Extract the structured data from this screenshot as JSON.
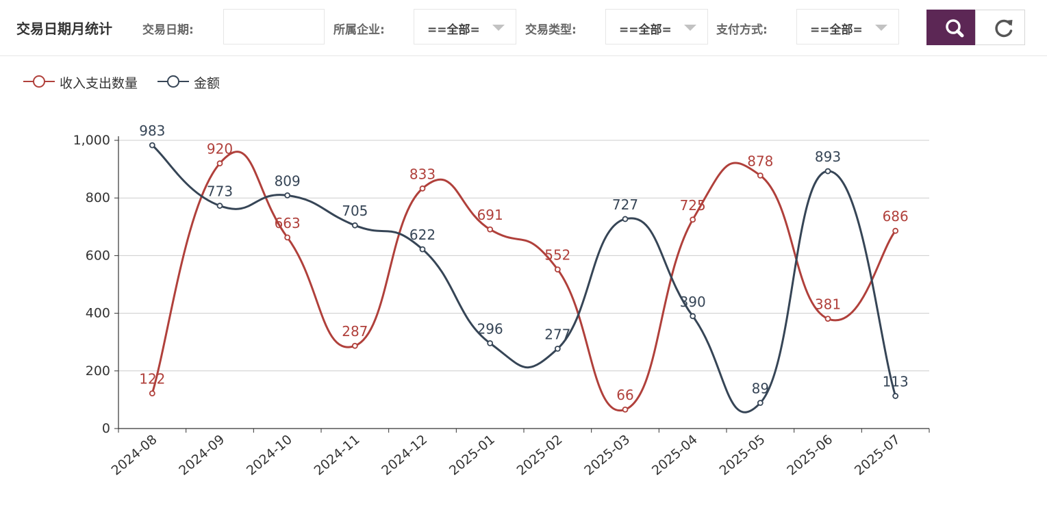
{
  "header": {
    "title": "交易日期月统计",
    "filters": {
      "date_label": "交易日期:",
      "date_value": "",
      "company_label": "所属企业:",
      "company_value": "==全部=",
      "type_label": "交易类型:",
      "type_value": "==全部=",
      "payment_label": "支付方式:",
      "payment_value": "==全部="
    },
    "search_icon": "search-icon",
    "reset_icon": "refresh-icon",
    "accent_color": "#5c2755"
  },
  "legend": {
    "placement": "top-left",
    "items": [
      "收入支出数量",
      "金额"
    ]
  },
  "chart_data": {
    "type": "line",
    "smooth": true,
    "categories": [
      "2024-08",
      "2024-09",
      "2024-10",
      "2024-11",
      "2024-12",
      "2025-01",
      "2025-02",
      "2025-03",
      "2025-04",
      "2025-05",
      "2025-06",
      "2025-07"
    ],
    "series": [
      {
        "name": "收入支出数量",
        "color": "#b0403b",
        "values": [
          122,
          920,
          663,
          287,
          833,
          691,
          552,
          66,
          725,
          878,
          381,
          686
        ]
      },
      {
        "name": "金额",
        "color": "#364556",
        "values": [
          983,
          773,
          809,
          705,
          622,
          296,
          277,
          727,
          390,
          89,
          893,
          113
        ]
      }
    ],
    "yticks": [
      "0",
      "200",
      "400",
      "600",
      "800",
      "1,000"
    ],
    "ylim": [
      0,
      1000
    ],
    "grid": true,
    "data_labels": true
  }
}
